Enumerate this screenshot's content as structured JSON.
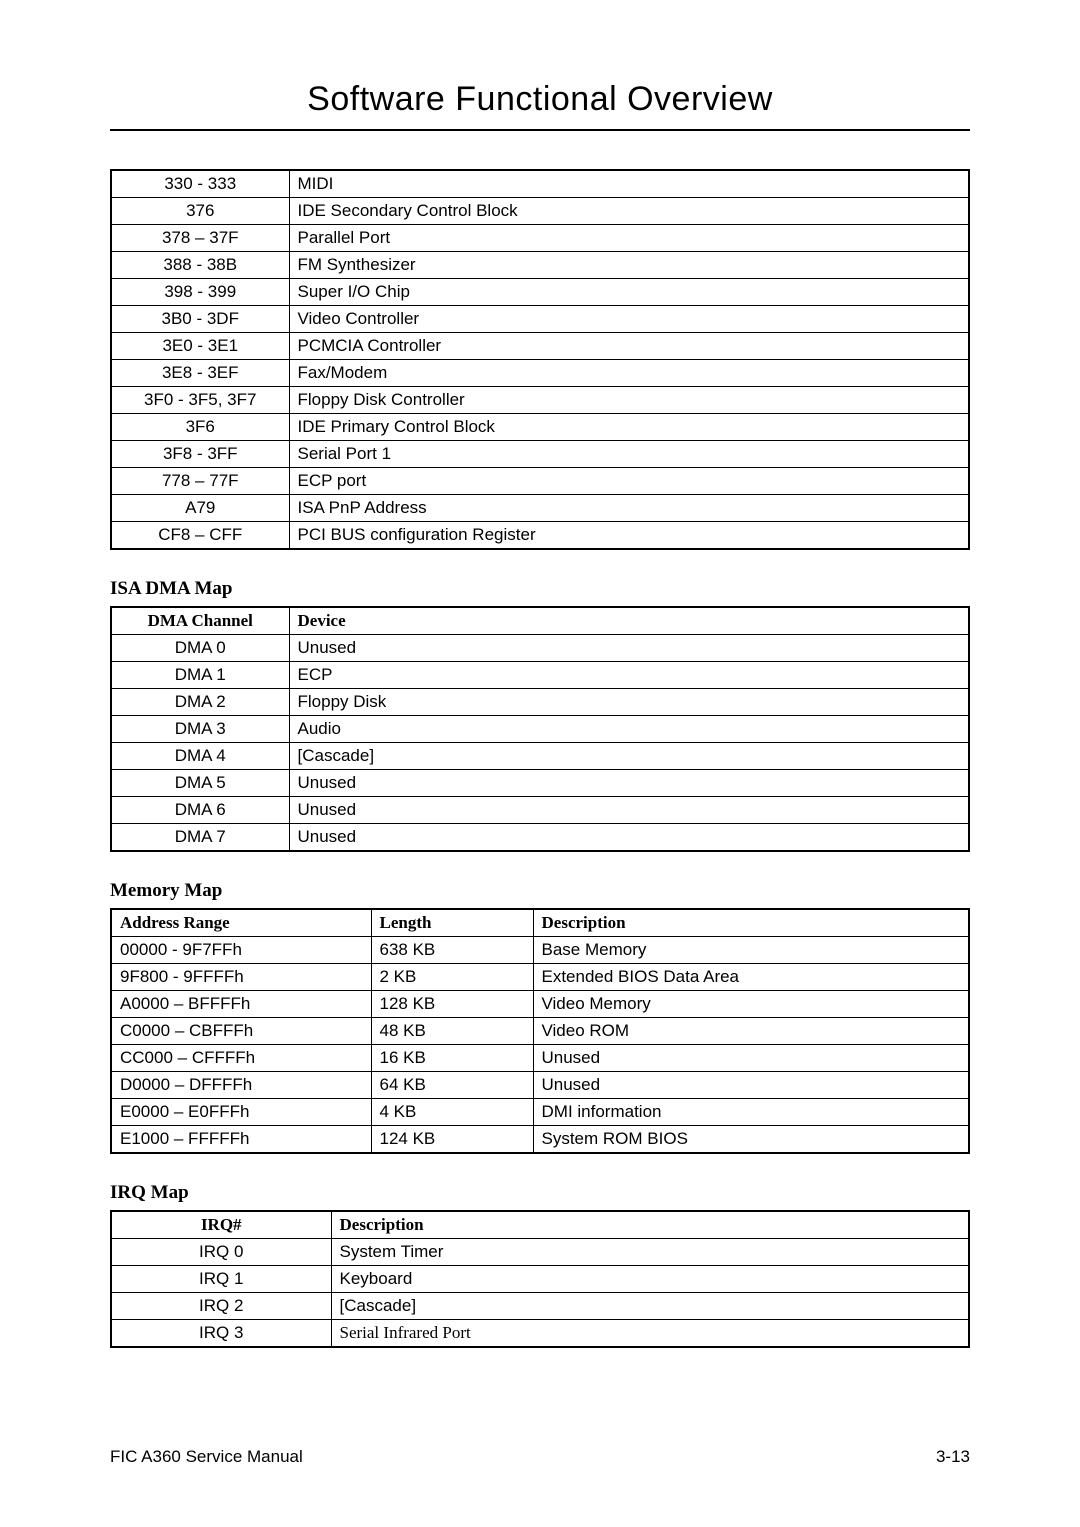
{
  "page": {
    "title": "Software Functional Overview",
    "footer_left": "FIC A360 Service Manual",
    "footer_right": "3-13"
  },
  "io_table": {
    "rows": [
      {
        "range": "330 - 333",
        "desc": "MIDI"
      },
      {
        "range": "376",
        "desc": "IDE Secondary Control Block"
      },
      {
        "range": "378 – 37F",
        "desc": "Parallel Port"
      },
      {
        "range": "388 - 38B",
        "desc": "FM Synthesizer"
      },
      {
        "range": "398 - 399",
        "desc": "Super I/O Chip"
      },
      {
        "range": "3B0 - 3DF",
        "desc": "Video Controller"
      },
      {
        "range": "3E0 - 3E1",
        "desc": "PCMCIA Controller"
      },
      {
        "range": "3E8 - 3EF",
        "desc": "Fax/Modem"
      },
      {
        "range": "3F0 - 3F5, 3F7",
        "desc": "Floppy Disk Controller"
      },
      {
        "range": "3F6",
        "desc": "IDE Primary Control Block"
      },
      {
        "range": "3F8 - 3FF",
        "desc": "Serial Port 1"
      },
      {
        "range": "778 – 77F",
        "desc": "ECP port"
      },
      {
        "range": "A79",
        "desc": "ISA PnP Address"
      },
      {
        "range": "CF8 – CFF",
        "desc": "PCI BUS configuration Register"
      }
    ]
  },
  "dma": {
    "heading": "ISA DMA Map",
    "col1": "DMA Channel",
    "col2": "Device",
    "rows": [
      {
        "ch": "DMA 0",
        "dev": "Unused"
      },
      {
        "ch": "DMA 1",
        "dev": "ECP"
      },
      {
        "ch": "DMA 2",
        "dev": "Floppy Disk"
      },
      {
        "ch": "DMA 3",
        "dev": "Audio"
      },
      {
        "ch": "DMA 4",
        "dev": "[Cascade]"
      },
      {
        "ch": "DMA 5",
        "dev": "Unused"
      },
      {
        "ch": "DMA 6",
        "dev": "Unused"
      },
      {
        "ch": "DMA 7",
        "dev": "Unused"
      }
    ]
  },
  "mem": {
    "heading": "Memory Map",
    "col1": "Address Range",
    "col2": "Length",
    "col3": "Description",
    "rows": [
      {
        "addr": "00000 - 9F7FFh",
        "len": "638 KB",
        "desc": "Base Memory"
      },
      {
        "addr": "9F800 - 9FFFFh",
        "len": "2 KB",
        "desc": "Extended BIOS Data Area"
      },
      {
        "addr": "A0000 – BFFFFh",
        "len": "128 KB",
        "desc": "Video Memory"
      },
      {
        "addr": "C0000 – CBFFFh",
        "len": "48 KB",
        "desc": "Video ROM"
      },
      {
        "addr": "CC000 – CFFFFh",
        "len": "16 KB",
        "desc": "Unused"
      },
      {
        "addr": "D0000 – DFFFFh",
        "len": "64 KB",
        "desc": "Unused"
      },
      {
        "addr": "E0000 – E0FFFh",
        "len": "4 KB",
        "desc": "DMI information"
      },
      {
        "addr": "E1000 – FFFFFh",
        "len": "124 KB",
        "desc": "System ROM BIOS"
      }
    ]
  },
  "irq": {
    "heading": "IRQ Map",
    "col1": "IRQ#",
    "col2": "Description",
    "rows": [
      {
        "irq": "IRQ 0",
        "desc": "System Timer"
      },
      {
        "irq": "IRQ 1",
        "desc": "Keyboard"
      },
      {
        "irq": "IRQ 2",
        "desc": "[Cascade]"
      },
      {
        "irq": "IRQ 3",
        "desc": "Serial Infrared Port",
        "serif": true
      }
    ]
  }
}
